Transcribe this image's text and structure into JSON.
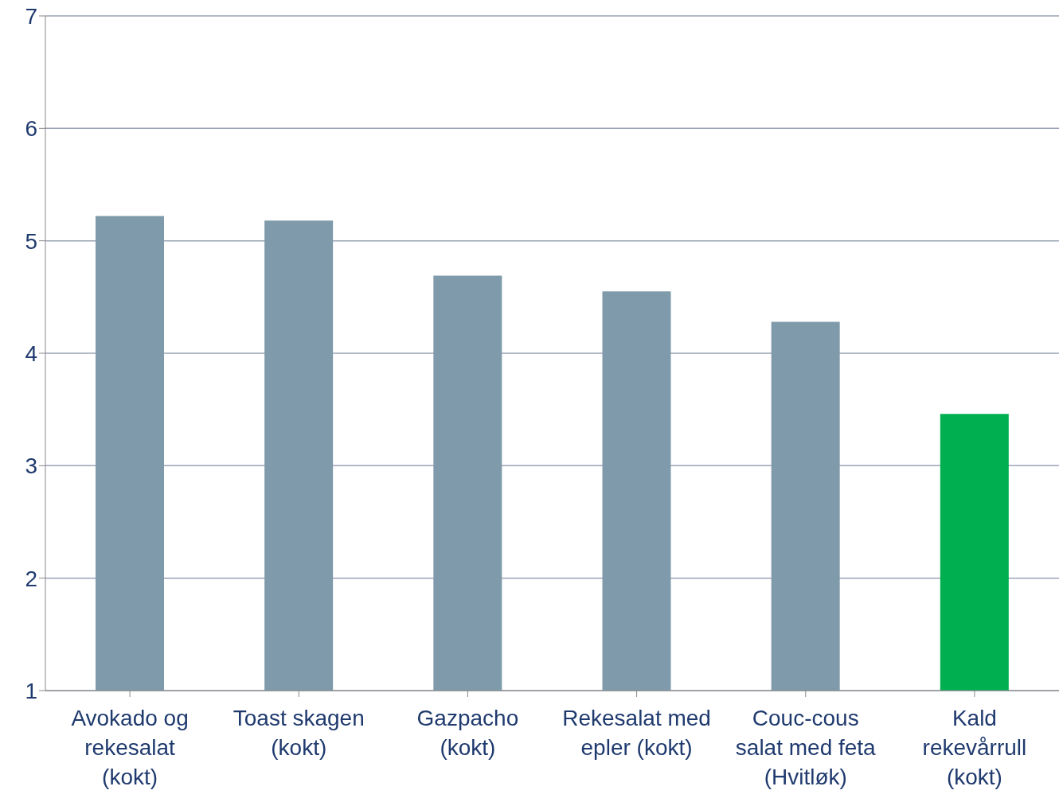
{
  "chart_data": {
    "type": "bar",
    "categories": [
      "Avokado og rekesalat (kokt)",
      "Toast skagen (kokt)",
      "Gazpacho (kokt)",
      "Rekesalat med epler (kokt)",
      "Couc-cous salat med feta (Hvitløk)",
      "Kald rekevårrull (kokt)"
    ],
    "values": [
      5.22,
      5.18,
      4.69,
      4.55,
      4.28,
      3.46
    ],
    "colors": [
      "#7f9aaa",
      "#7f9aaa",
      "#7f9aaa",
      "#7f9aaa",
      "#7f9aaa",
      "#00b050"
    ],
    "ylim": [
      1,
      7
    ],
    "yticks": [
      1,
      2,
      3,
      4,
      5,
      6,
      7
    ],
    "grid": "y"
  }
}
